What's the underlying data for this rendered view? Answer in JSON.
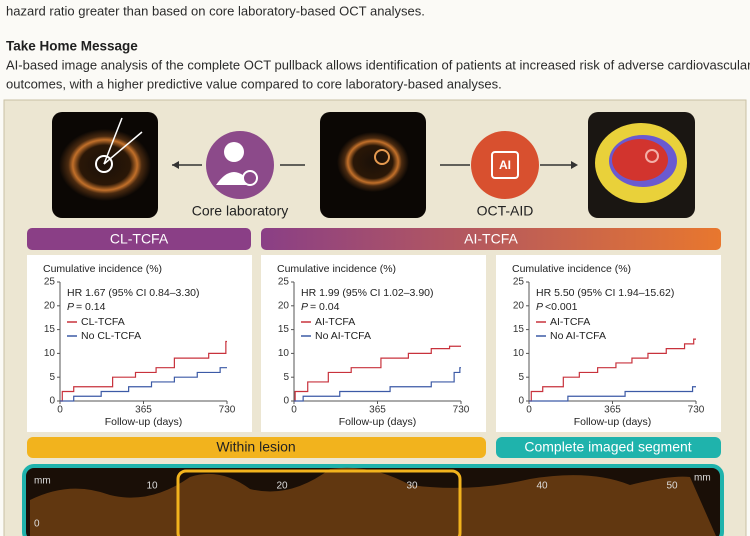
{
  "text": {
    "intro_tail": "hazard ratio greater than based on core laboratory-based OCT analyses.",
    "take_home_title": "Take Home Message",
    "take_home_lines": [
      "AI-based image analysis of the complete OCT pullback allows identification of patients at increased risk of adverse cardiovascular",
      "outcomes, with a higher predictive value compared to core laboratory-based analyses."
    ]
  },
  "figure": {
    "core_lab": "Core laboratory",
    "oct_aid": "OCT-AID",
    "ai_icon": "AI",
    "headers": [
      "CL-TCFA",
      "AI-TCFA"
    ],
    "footers": [
      "Within lesion",
      "Complete imaged segment"
    ],
    "pullback": {
      "units": "mm",
      "ticks": [
        10,
        20,
        30,
        40,
        50
      ],
      "zero": "0"
    }
  },
  "chart_data": [
    {
      "type": "step",
      "ylabel": "Cumulative incidence (%)",
      "xlabel": "Follow-up (days)",
      "annotation": "HR 1.67 (95% CI 0.84–3.30)",
      "p_symbol": "P",
      "p_text": "= 0.14",
      "xlim": [
        0,
        730
      ],
      "xticks": [
        0,
        365,
        730
      ],
      "ylim": [
        0,
        25
      ],
      "yticks": [
        0,
        5,
        10,
        15,
        20,
        25
      ],
      "series": [
        {
          "name": "CL-TCFA",
          "color": "#c8323c",
          "x": [
            0,
            10,
            60,
            230,
            330,
            420,
            500,
            650,
            725
          ],
          "values": [
            0,
            2,
            3,
            5,
            6,
            7,
            9,
            10,
            12.5
          ]
        },
        {
          "name": "No CL-TCFA",
          "color": "#3c5aa6",
          "x": [
            0,
            60,
            180,
            300,
            400,
            500,
            600,
            700
          ],
          "values": [
            0,
            1,
            2,
            3,
            4,
            5,
            6,
            7
          ]
        }
      ]
    },
    {
      "type": "step",
      "ylabel": "Cumulative incidence (%)",
      "xlabel": "Follow-up (days)",
      "annotation": "HR 1.99 (95% CI 1.02–3.90)",
      "p_symbol": "P",
      "p_text": "= 0.04",
      "xlim": [
        0,
        730
      ],
      "xticks": [
        0,
        365,
        730
      ],
      "ylim": [
        0,
        25
      ],
      "yticks": [
        0,
        5,
        10,
        15,
        20,
        25
      ],
      "series": [
        {
          "name": "AI-TCFA",
          "color": "#c8323c",
          "x": [
            0,
            5,
            60,
            150,
            250,
            380,
            500,
            600,
            680
          ],
          "values": [
            0,
            2,
            4,
            6,
            7,
            9,
            10,
            11,
            11.5
          ]
        },
        {
          "name": "No AI-TCFA",
          "color": "#3c5aa6",
          "x": [
            0,
            40,
            200,
            420,
            600,
            700,
            725
          ],
          "values": [
            0,
            1,
            2,
            3,
            4,
            6,
            7
          ]
        }
      ]
    },
    {
      "type": "step",
      "ylabel": "Cumulative incidence (%)",
      "xlabel": "Follow-up (days)",
      "annotation": "HR 5.50 (95% CI 1.94–15.62)",
      "p_symbol": "P",
      "p_text": "<0.001",
      "xlim": [
        0,
        730
      ],
      "xticks": [
        0,
        365,
        730
      ],
      "ylim": [
        0,
        25
      ],
      "yticks": [
        0,
        5,
        10,
        15,
        20,
        25
      ],
      "series": [
        {
          "name": "AI-TCFA",
          "color": "#c8323c",
          "x": [
            0,
            10,
            60,
            150,
            220,
            300,
            380,
            450,
            520,
            600,
            680,
            720
          ],
          "values": [
            0,
            2,
            3,
            5,
            6,
            7,
            8,
            9,
            10,
            11,
            12,
            13
          ]
        },
        {
          "name": "No AI-TCFA",
          "color": "#3c5aa6",
          "x": [
            0,
            170,
            420,
            715
          ],
          "values": [
            0,
            1,
            2,
            3
          ]
        }
      ]
    }
  ]
}
